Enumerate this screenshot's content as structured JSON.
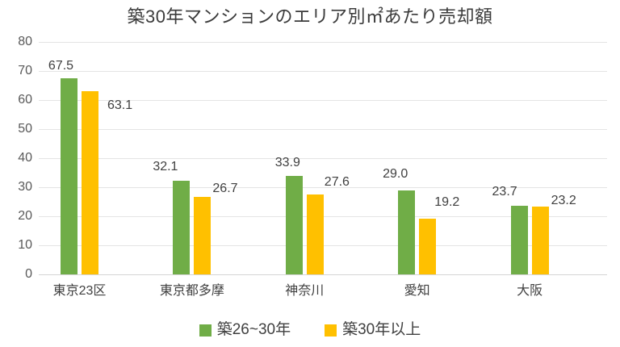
{
  "chart_data": {
    "type": "bar",
    "title": "築30年マンションのエリア別㎡あたり売却額",
    "categories": [
      "東京23区",
      "東京都多摩",
      "神奈川",
      "愛知",
      "大阪"
    ],
    "series": [
      {
        "name": "築26~30年",
        "color": "#70AD47",
        "values": [
          67.5,
          32.1,
          33.9,
          29.0,
          23.7
        ]
      },
      {
        "name": "築30年以上",
        "color": "#FFC000",
        "values": [
          63.1,
          26.7,
          27.6,
          19.2,
          23.2
        ]
      }
    ],
    "xlabel": "",
    "ylabel": "",
    "ylim": [
      0,
      80
    ],
    "ytick_step": 10,
    "grid": true,
    "legend_position": "bottom",
    "data_labels": true,
    "value_decimals": 1,
    "colors": {
      "grid": "#e4e4e4",
      "axis_line": "#d4d4d4",
      "tick_text": "#595959",
      "label_text": "#404040",
      "category_text": "#404040",
      "title_text": "#3b3b3b"
    }
  }
}
